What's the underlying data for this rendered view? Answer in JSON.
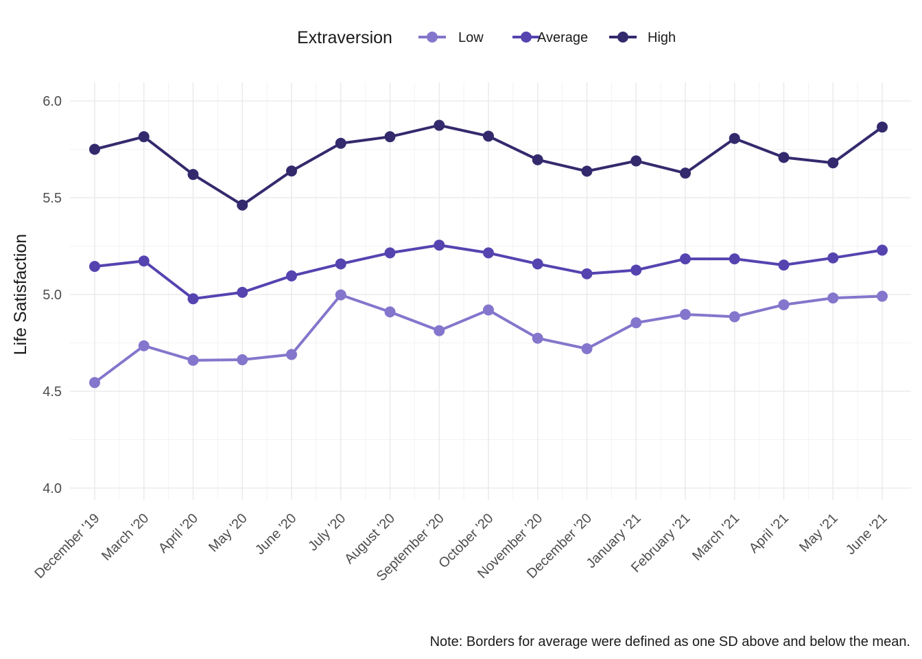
{
  "chart_data": {
    "type": "line",
    "ylabel": "Life Satisfaction",
    "xlabel": "",
    "ylim": [
      3.9,
      6.1
    ],
    "yticks": [
      4.0,
      4.5,
      5.0,
      5.5,
      6.0
    ],
    "ytick_labels": [
      "4.0",
      "4.5",
      "5.0",
      "5.5",
      "6.0"
    ],
    "grid": true,
    "legend": {
      "title": "Extraversion",
      "position": "top"
    },
    "caption": "Note: Borders for average were defined as one SD above and below the mean.",
    "categories": [
      "December '19",
      "March '20",
      "April '20",
      "May '20",
      "June '20",
      "July '20",
      "August '20",
      "September '20",
      "October '20",
      "November '20",
      "December '20",
      "January '21",
      "February '21",
      "March '21",
      "April '21",
      "May '21",
      "June '21"
    ],
    "series": [
      {
        "name": "Low",
        "color": "#8476cc",
        "values": [
          4.545,
          4.735,
          4.66,
          4.663,
          4.69,
          4.998,
          4.91,
          4.813,
          4.92,
          4.774,
          4.72,
          4.854,
          4.897,
          4.885,
          4.947,
          4.982,
          4.991
        ]
      },
      {
        "name": "Average",
        "color": "#5543b0",
        "values": [
          5.145,
          5.173,
          4.978,
          5.011,
          5.096,
          5.158,
          5.215,
          5.255,
          5.215,
          5.158,
          5.107,
          5.126,
          5.184,
          5.184,
          5.152,
          5.189,
          5.229
        ]
      },
      {
        "name": "High",
        "color": "#332a6d",
        "values": [
          5.75,
          5.815,
          5.62,
          5.462,
          5.638,
          5.781,
          5.815,
          5.874,
          5.818,
          5.696,
          5.637,
          5.69,
          5.627,
          5.806,
          5.708,
          5.68,
          5.865
        ]
      }
    ]
  }
}
